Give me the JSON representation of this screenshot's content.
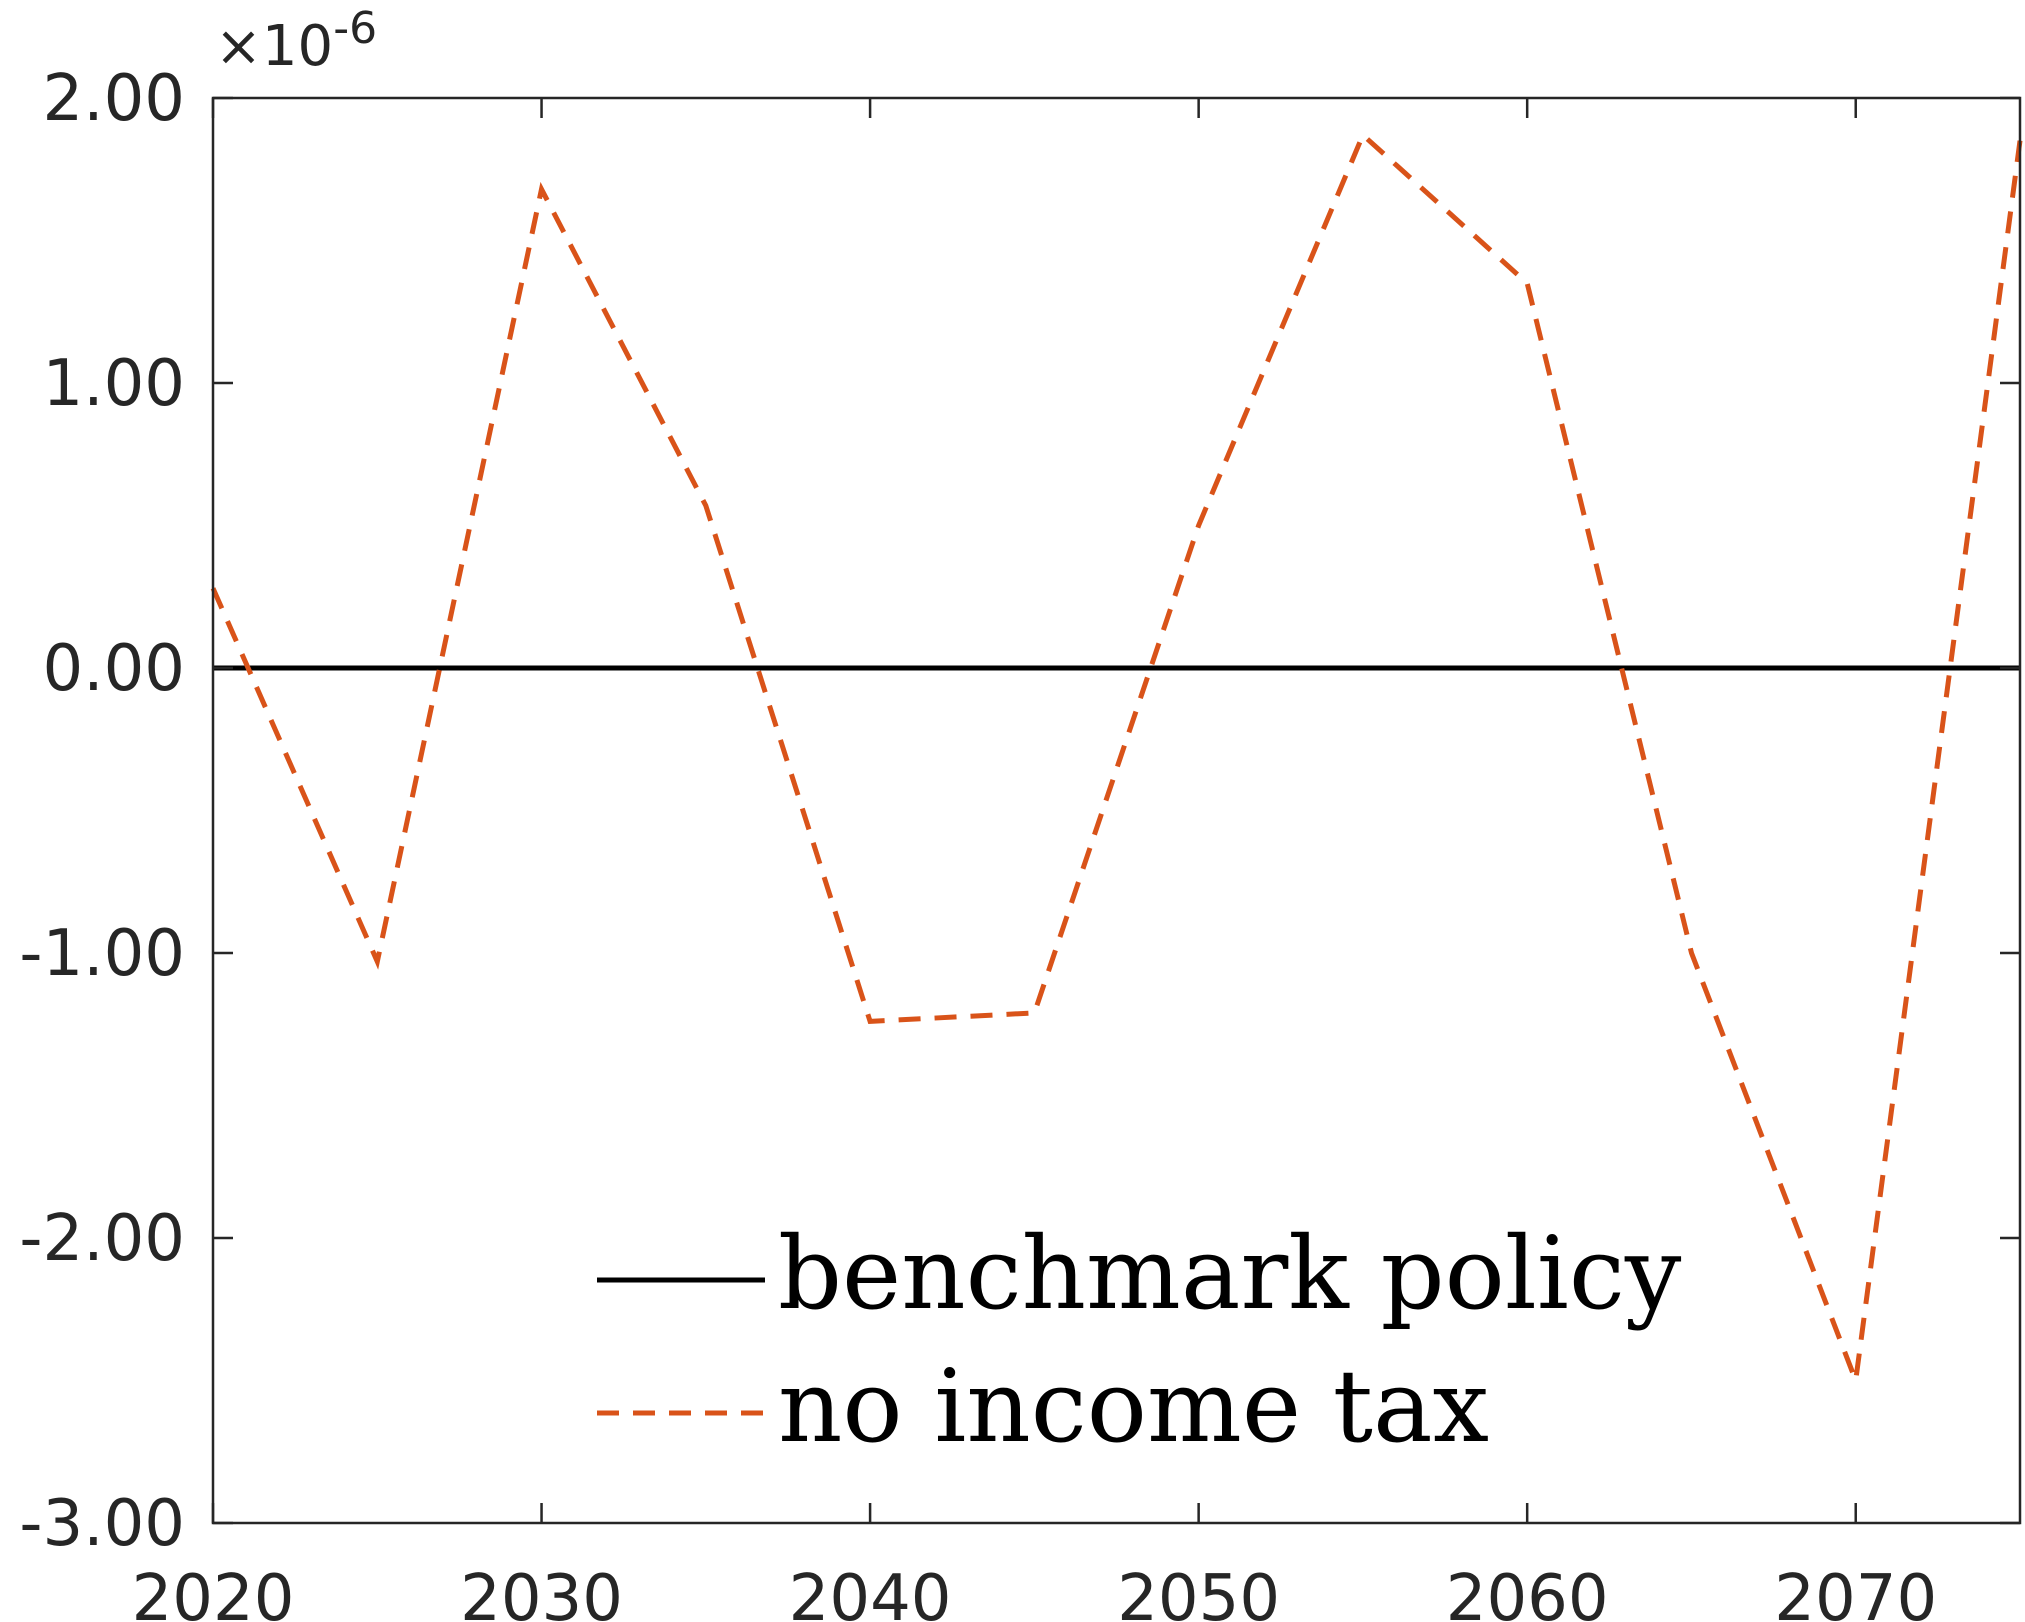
{
  "chart_data": {
    "type": "line",
    "x": [
      2020,
      2025,
      2030,
      2035,
      2040,
      2045,
      2050,
      2055,
      2060,
      2065,
      2070,
      2075
    ],
    "xlim": [
      2020,
      2075
    ],
    "ylim": [
      -3,
      2
    ],
    "y_multiplier_text": "×10",
    "y_multiplier_exponent": "-6",
    "xticks": [
      2020,
      2030,
      2040,
      2050,
      2060,
      2070
    ],
    "xtick_labels": [
      "2020",
      "2030",
      "2040",
      "2050",
      "2060",
      "2070"
    ],
    "yticks": [
      2,
      1,
      0,
      -1,
      -2,
      -3
    ],
    "ytick_labels": [
      "2.00",
      "1.00",
      "0.00",
      "-1.00",
      "-2.00",
      "-3.00"
    ],
    "grid": false,
    "legend_position": "bottom-center",
    "series": [
      {
        "name": "benchmark policy",
        "style": "solid",
        "color": "#000000",
        "values": [
          0,
          0,
          0,
          0,
          0,
          0,
          0,
          0,
          0,
          0,
          0,
          0
        ]
      },
      {
        "name": "no income tax",
        "style": "dashed",
        "color": "#D95319",
        "values": [
          0.28,
          -1.03,
          1.68,
          0.57,
          -1.24,
          -1.21,
          0.5,
          1.87,
          1.35,
          -1.0,
          -2.5,
          1.85
        ]
      }
    ]
  }
}
